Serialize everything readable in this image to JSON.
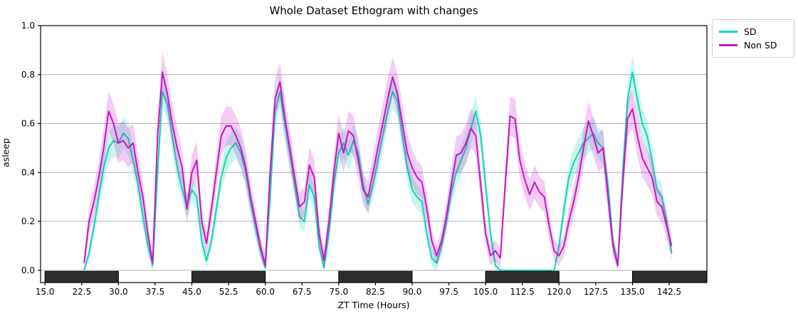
{
  "figure": {
    "title": "Whole Dataset Ethogram with changes",
    "background": "#ffffff"
  },
  "chart_data": {
    "type": "line",
    "title": "Whole Dataset Ethogram with changes",
    "xlabel": "ZT Time (Hours)",
    "ylabel": "asleep",
    "xlim": [
      14.1,
      150.2
    ],
    "ylim": [
      -0.05,
      1.0
    ],
    "grid": "horizontal",
    "grid_color": "#b0b0b0",
    "x_ticks": [
      15.0,
      22.5,
      30.0,
      37.5,
      45.0,
      52.5,
      60.0,
      67.5,
      75.0,
      82.5,
      90.0,
      97.5,
      105.0,
      112.5,
      120.0,
      127.5,
      135.0,
      142.5
    ],
    "x_tick_labels": [
      "15.0",
      "22.5",
      "30.0",
      "37.5",
      "45.0",
      "52.5",
      "60.0",
      "67.5",
      "75.0",
      "82.5",
      "90.0",
      "97.5",
      "105.0",
      "112.5",
      "120.0",
      "127.5",
      "135.0",
      "142.5"
    ],
    "y_ticks": [
      0.0,
      0.2,
      0.4,
      0.6,
      0.8,
      1.0
    ],
    "y_tick_labels": [
      "0.0",
      "0.2",
      "0.4",
      "0.6",
      "0.8",
      "1.0"
    ],
    "legend_position": "outside-top-right",
    "x_start": 23,
    "x_step": 1,
    "band_alpha": 0.22,
    "dark_bar_color": "#2e2e2e",
    "dark_periods": [
      [
        15,
        30
      ],
      [
        45,
        60
      ],
      [
        75,
        90
      ],
      [
        105,
        120
      ],
      [
        135,
        150.2
      ]
    ],
    "series": [
      {
        "name": "SD",
        "color": "#0fd7b4",
        "band_halfwidth": 0.065,
        "values": [
          0.0,
          0.07,
          0.18,
          0.3,
          0.42,
          0.5,
          0.53,
          0.52,
          0.56,
          0.54,
          0.45,
          0.35,
          0.22,
          0.1,
          0.02,
          0.4,
          0.73,
          0.68,
          0.55,
          0.42,
          0.33,
          0.26,
          0.33,
          0.3,
          0.12,
          0.04,
          0.12,
          0.25,
          0.38,
          0.46,
          0.5,
          0.52,
          0.48,
          0.4,
          0.28,
          0.18,
          0.08,
          0.01,
          0.3,
          0.65,
          0.73,
          0.6,
          0.48,
          0.35,
          0.22,
          0.2,
          0.35,
          0.3,
          0.1,
          0.01,
          0.15,
          0.35,
          0.48,
          0.52,
          0.47,
          0.53,
          0.48,
          0.35,
          0.27,
          0.35,
          0.45,
          0.55,
          0.65,
          0.73,
          0.69,
          0.55,
          0.42,
          0.33,
          0.3,
          0.28,
          0.15,
          0.05,
          0.03,
          0.1,
          0.2,
          0.32,
          0.4,
          0.45,
          0.5,
          0.58,
          0.65,
          0.55,
          0.35,
          0.15,
          0.02,
          0.0,
          0.0,
          0.0,
          0.0,
          0.0,
          0.0,
          0.0,
          0.0,
          0.0,
          0.0,
          0.0,
          0.0,
          0.1,
          0.25,
          0.38,
          0.44,
          0.48,
          0.52,
          0.54,
          0.56,
          0.52,
          0.5,
          0.35,
          0.12,
          0.02,
          0.4,
          0.7,
          0.81,
          0.7,
          0.6,
          0.55,
          0.45,
          0.33,
          0.3,
          0.2,
          0.07
        ]
      },
      {
        "name": "Non SD",
        "color": "#c716c7",
        "band_halfwidth": 0.08,
        "values": [
          0.03,
          0.2,
          0.28,
          0.38,
          0.5,
          0.65,
          0.6,
          0.52,
          0.53,
          0.5,
          0.52,
          0.4,
          0.3,
          0.15,
          0.03,
          0.55,
          0.81,
          0.72,
          0.6,
          0.5,
          0.42,
          0.25,
          0.4,
          0.45,
          0.2,
          0.11,
          0.25,
          0.4,
          0.55,
          0.59,
          0.59,
          0.55,
          0.5,
          0.42,
          0.3,
          0.2,
          0.1,
          0.02,
          0.4,
          0.7,
          0.77,
          0.62,
          0.5,
          0.38,
          0.26,
          0.28,
          0.43,
          0.38,
          0.15,
          0.04,
          0.2,
          0.4,
          0.56,
          0.48,
          0.57,
          0.55,
          0.45,
          0.33,
          0.3,
          0.4,
          0.5,
          0.6,
          0.7,
          0.79,
          0.72,
          0.6,
          0.48,
          0.42,
          0.38,
          0.36,
          0.25,
          0.12,
          0.06,
          0.12,
          0.22,
          0.35,
          0.47,
          0.48,
          0.52,
          0.58,
          0.55,
          0.35,
          0.15,
          0.06,
          0.08,
          0.05,
          0.35,
          0.63,
          0.62,
          0.45,
          0.37,
          0.31,
          0.36,
          0.32,
          0.3,
          0.18,
          0.08,
          0.06,
          0.1,
          0.2,
          0.28,
          0.38,
          0.5,
          0.61,
          0.55,
          0.48,
          0.5,
          0.3,
          0.1,
          0.02,
          0.35,
          0.62,
          0.66,
          0.55,
          0.46,
          0.42,
          0.38,
          0.28,
          0.26,
          0.18,
          0.1
        ]
      }
    ]
  }
}
